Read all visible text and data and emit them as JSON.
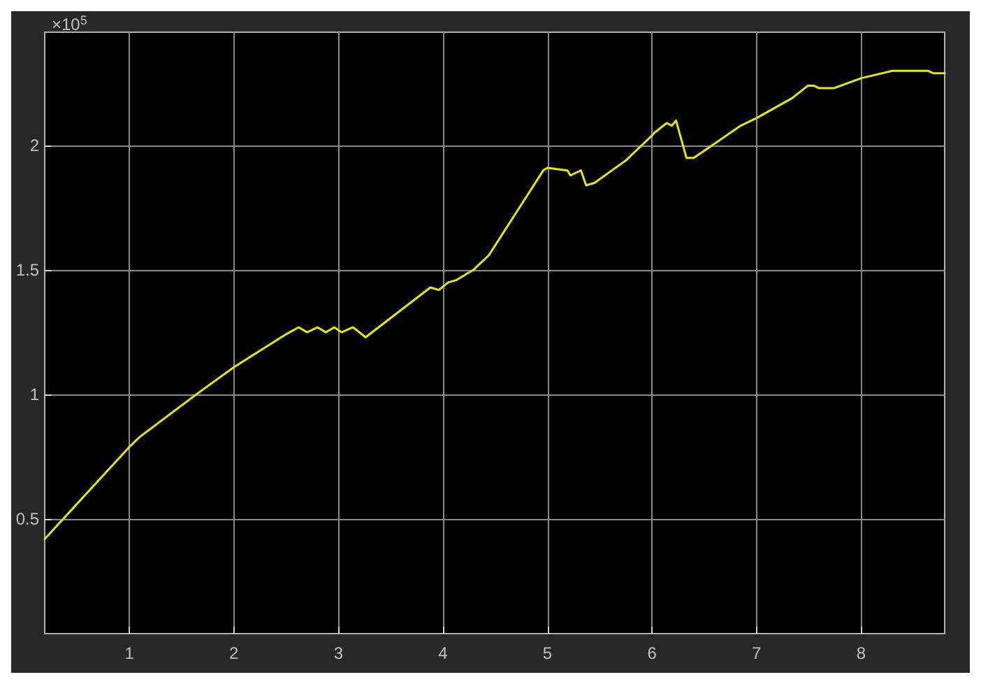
{
  "chart_data": {
    "type": "line",
    "annotations": [
      "×10$^{5}$"
    ],
    "xlim": [
      0.19,
      8.8
    ],
    "xticks": [
      1,
      2,
      3,
      4,
      5,
      6,
      7,
      8
    ],
    "ylim": [
      0.04,
      2.455
    ],
    "yticks": [
      0.5,
      1,
      1.5,
      2
    ],
    "grid": true,
    "marker": "none",
    "line_style": "solid",
    "series": [
      {
        "color": "#e8e800",
        "x": [
          0.19,
          1.0,
          1.1,
          1.67,
          2.0,
          2.49,
          2.62,
          2.7,
          2.8,
          2.88,
          2.96,
          3.03,
          3.14,
          3.26,
          3.88,
          3.96,
          4.05,
          4.13,
          4.29,
          4.44,
          4.96,
          5.0,
          5.19,
          5.22,
          5.32,
          5.37,
          5.45,
          5.75,
          6.0,
          6.02,
          6.14,
          6.19,
          6.23,
          6.33,
          6.4,
          6.85,
          7.0,
          7.34,
          7.49,
          7.55,
          7.6,
          7.74,
          8.0,
          8.3,
          8.64,
          8.69,
          8.8
        ],
        "values": [
          0.42,
          0.79,
          0.83,
          1.01,
          1.11,
          1.24,
          1.27,
          1.25,
          1.27,
          1.25,
          1.27,
          1.25,
          1.27,
          1.23,
          1.43,
          1.42,
          1.45,
          1.46,
          1.5,
          1.56,
          1.9,
          1.91,
          1.9,
          1.88,
          1.9,
          1.84,
          1.85,
          1.94,
          2.04,
          2.05,
          2.09,
          2.08,
          2.1,
          1.95,
          1.95,
          2.08,
          2.11,
          2.19,
          2.24,
          2.24,
          2.23,
          2.23,
          2.27,
          2.3,
          2.3,
          2.29,
          2.29
        ]
      }
    ]
  }
}
